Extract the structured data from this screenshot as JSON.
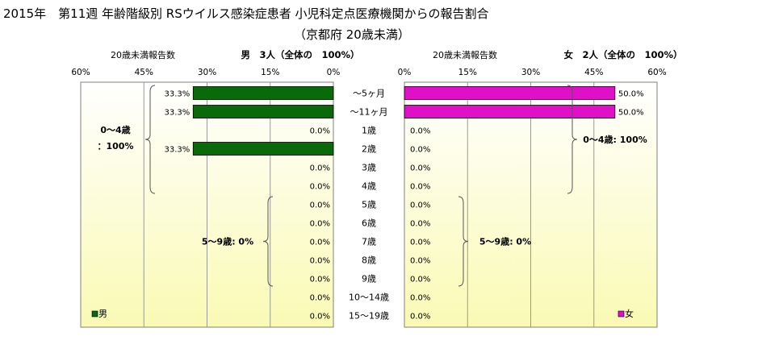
{
  "title": {
    "line1": "2015年　第11週 年齢階級別 RSウイルス感染症患者 小児科定点医療機関からの報告割合",
    "line2": "（京都府 20歳未満）"
  },
  "colors": {
    "male_bar": "#0a6a0a",
    "female_bar": "#e010c8",
    "plot_top": "#ffffff",
    "plot_bottom": "#fafab4",
    "grid": "#9a9a9a"
  },
  "chart_data": [
    {
      "type": "bar",
      "orientation": "horizontal",
      "direction": "right-to-left",
      "series_name": "男",
      "header_left": "20歳未満報告数",
      "header_right": "男　3人（全体の　100%）",
      "xlim": [
        0,
        60
      ],
      "ticks": [
        "60%",
        "45%",
        "30%",
        "15%",
        "0%"
      ],
      "tick_values": [
        60,
        45,
        30,
        15,
        0
      ],
      "grid": true,
      "legend": "bottom-left",
      "values": [
        33.3,
        33.3,
        0.0,
        33.3,
        0.0,
        0.0,
        0.0,
        0.0,
        0.0,
        0.0,
        0.0,
        0.0,
        0.0
      ],
      "labels": [
        "33.3%",
        "33.3%",
        "0.0%",
        "33.3%",
        "0.0%",
        "0.0%",
        "0.0%",
        "0.0%",
        "0.0%",
        "0.0%",
        "0.0%",
        "0.0%",
        "0.0%"
      ],
      "groups": [
        {
          "label_line1": "0～4歳",
          "label_line2": "：100%",
          "from": 0,
          "to": 5
        },
        {
          "label_line1": "5～9歳: 0%",
          "label_line2": "",
          "from": 6,
          "to": 10
        }
      ]
    },
    {
      "type": "bar",
      "orientation": "horizontal",
      "direction": "left-to-right",
      "series_name": "女",
      "header_left": "20歳未満報告数",
      "header_right": "女　2人（全体の　100%）",
      "xlim": [
        0,
        60
      ],
      "ticks": [
        "0%",
        "15%",
        "30%",
        "45%",
        "60%"
      ],
      "tick_values": [
        0,
        15,
        30,
        45,
        60
      ],
      "grid": true,
      "legend": "bottom-right",
      "values": [
        50.0,
        50.0,
        0.0,
        0.0,
        0.0,
        0.0,
        0.0,
        0.0,
        0.0,
        0.0,
        0.0,
        0.0,
        0.0
      ],
      "labels": [
        "50.0%",
        "50.0%",
        "0.0%",
        "0.0%",
        "0.0%",
        "0.0%",
        "0.0%",
        "0.0%",
        "0.0%",
        "0.0%",
        "0.0%",
        "0.0%",
        "0.0%"
      ],
      "groups": [
        {
          "label_line1": "0～4歳: 100%",
          "label_line2": "",
          "from": 0,
          "to": 5
        },
        {
          "label_line1": "5～9歳: 0%",
          "label_line2": "",
          "from": 6,
          "to": 10
        }
      ]
    }
  ],
  "categories": [
    "～5ヶ月",
    "～11ヶ月",
    "1歳",
    "2歳",
    "3歳",
    "4歳",
    "5歳",
    "6歳",
    "7歳",
    "8歳",
    "9歳",
    "10～14歳",
    "15～19歳"
  ]
}
